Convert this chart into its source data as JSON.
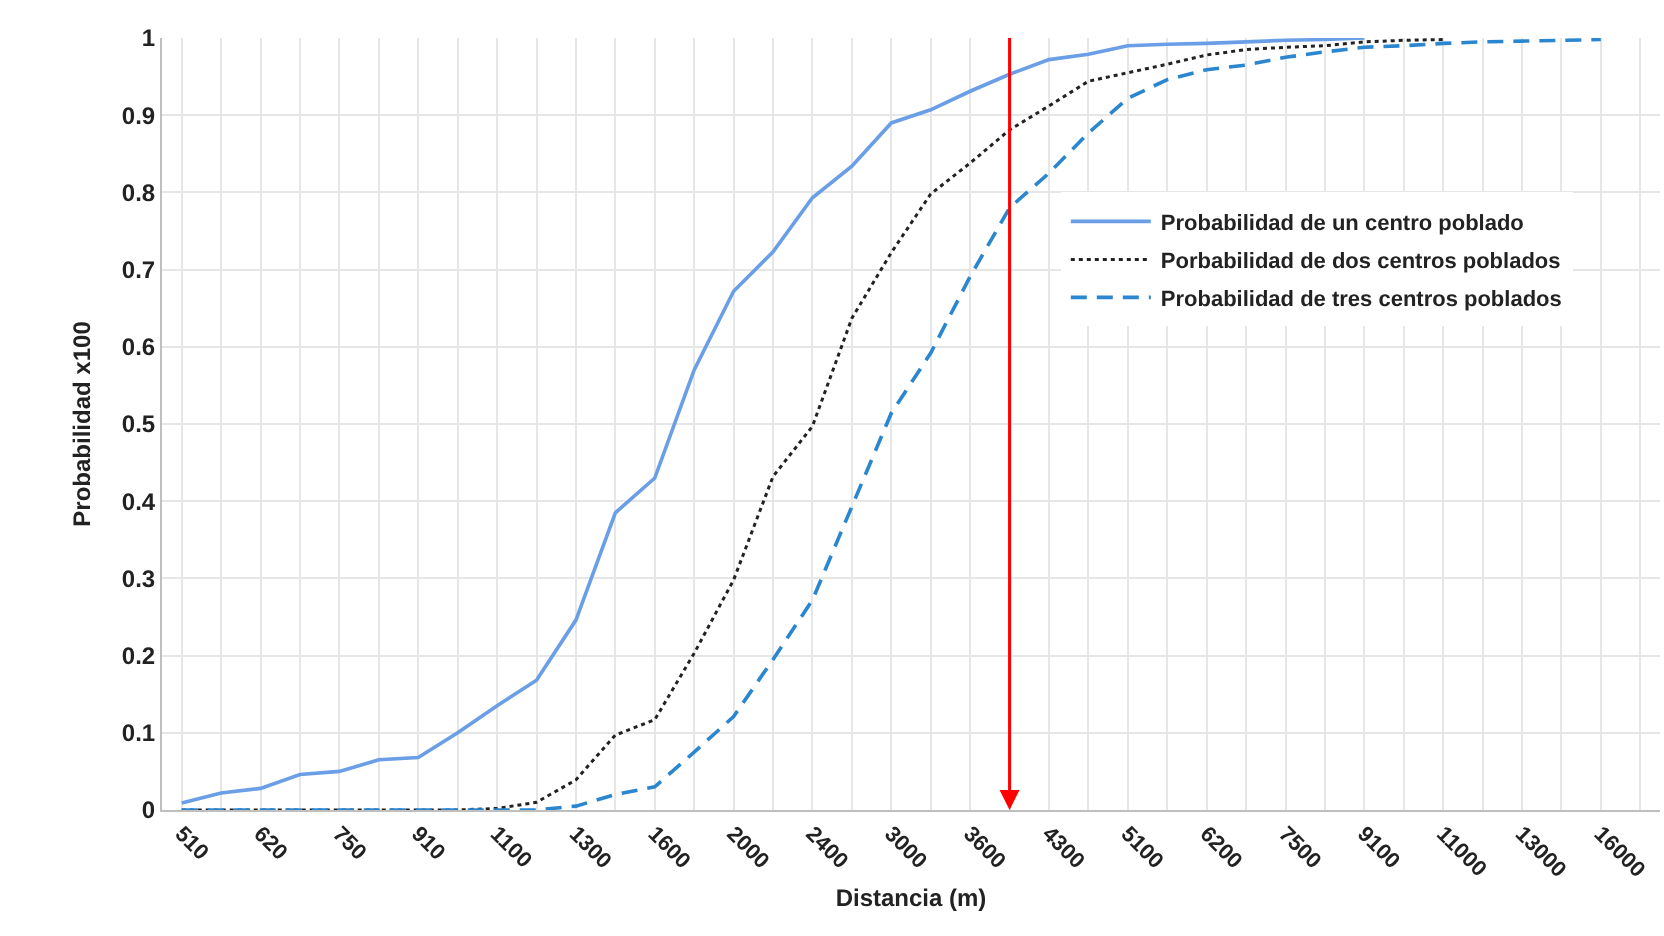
{
  "chart_data": {
    "type": "line",
    "xlabel": "Distancia (m)",
    "ylabel": "Probabilidad x100",
    "categories": [
      "510",
      null,
      "620",
      null,
      "750",
      null,
      "910",
      null,
      "1100",
      null,
      "1300",
      null,
      "1600",
      null,
      "2000",
      null,
      "2400",
      null,
      "3000",
      null,
      "3600",
      null,
      "4300",
      null,
      "5100",
      null,
      "6200",
      null,
      "7500",
      null,
      "9100",
      null,
      "11000",
      null,
      "13000",
      null,
      "16000",
      null
    ],
    "series": [
      {
        "name": "Probabilidad de un centro poblado",
        "color": "#6a9ee6",
        "line_style": "solid",
        "values": [
          0.009,
          0.022,
          0.028,
          0.046,
          0.05,
          0.065,
          0.068,
          0.1,
          0.135,
          0.168,
          0.246,
          0.385,
          0.43,
          0.57,
          0.672,
          0.723,
          0.793,
          0.834,
          0.89,
          0.907,
          0.931,
          0.953,
          0.972,
          0.979,
          0.99,
          0.992,
          0.993,
          0.995,
          0.997,
          0.998,
          1.0,
          null,
          null,
          null,
          null,
          null,
          null,
          null
        ]
      },
      {
        "name": "Porbabilidad de dos centros poblados",
        "color": "#222222",
        "line_style": "dotted",
        "values": [
          0,
          0,
          0,
          0,
          0,
          0,
          0,
          0,
          0.002,
          0.01,
          0.039,
          0.097,
          0.117,
          0.203,
          0.298,
          0.432,
          0.497,
          0.637,
          0.722,
          0.798,
          0.838,
          0.881,
          0.912,
          0.944,
          0.955,
          0.966,
          0.978,
          0.985,
          0.988,
          0.99,
          0.995,
          0.997,
          0.998,
          null,
          null,
          null,
          null,
          null
        ]
      },
      {
        "name": "Probabilidad de tres centros poblados",
        "color": "#2b86d0",
        "line_style": "dashed",
        "values": [
          0,
          0,
          0,
          0,
          0,
          0,
          0,
          0,
          0,
          0,
          0.005,
          0.02,
          0.03,
          0.075,
          0.121,
          0.195,
          0.272,
          0.393,
          0.514,
          0.592,
          0.691,
          0.78,
          0.825,
          0.877,
          0.922,
          0.946,
          0.959,
          0.965,
          0.975,
          0.982,
          0.988,
          0.99,
          0.993,
          0.995,
          0.996,
          0.997,
          0.998,
          null
        ]
      }
    ],
    "ylim": [
      0,
      1
    ],
    "yticks": [
      0,
      0.1,
      0.2,
      0.3,
      0.4,
      0.5,
      0.6,
      0.7,
      0.8,
      0.9,
      1
    ],
    "grid": true,
    "legend": "top right",
    "marker": "none"
  }
}
